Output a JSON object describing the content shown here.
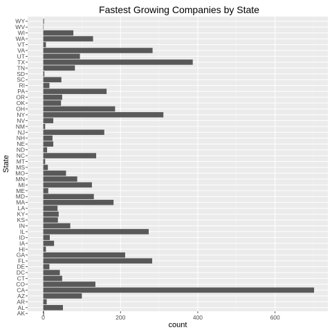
{
  "chart_data": {
    "type": "bar",
    "orientation": "horizontal",
    "title": "Fastest Growing Companies by State",
    "xlabel": "count",
    "ylabel": "State",
    "xlim": [
      0,
      720
    ],
    "xticks": [
      0,
      200,
      400,
      600
    ],
    "grid": true,
    "bar_color": "#595959",
    "panel_color": "#ebebeb",
    "categories": [
      "AK",
      "AL",
      "AR",
      "AZ",
      "CA",
      "CO",
      "CT",
      "DC",
      "DE",
      "FL",
      "GA",
      "HI",
      "IA",
      "ID",
      "IL",
      "IN",
      "KS",
      "KY",
      "LA",
      "MA",
      "MD",
      "ME",
      "MI",
      "MN",
      "MO",
      "MS",
      "MT",
      "NC",
      "ND",
      "NE",
      "NH",
      "NJ",
      "NM",
      "NV",
      "NY",
      "OH",
      "OK",
      "OR",
      "PA",
      "RI",
      "SC",
      "SD",
      "TN",
      "TX",
      "UT",
      "VA",
      "VT",
      "WA",
      "WI",
      "WV",
      "WY"
    ],
    "values": [
      2,
      51,
      9,
      100,
      701,
      135,
      49,
      43,
      16,
      282,
      212,
      7,
      28,
      17,
      273,
      70,
      38,
      40,
      37,
      182,
      131,
      13,
      126,
      88,
      59,
      12,
      5,
      137,
      10,
      26,
      24,
      158,
      5,
      26,
      311,
      186,
      46,
      49,
      164,
      16,
      47,
      3,
      82,
      387,
      95,
      283,
      7,
      129,
      78,
      1,
      2
    ]
  }
}
